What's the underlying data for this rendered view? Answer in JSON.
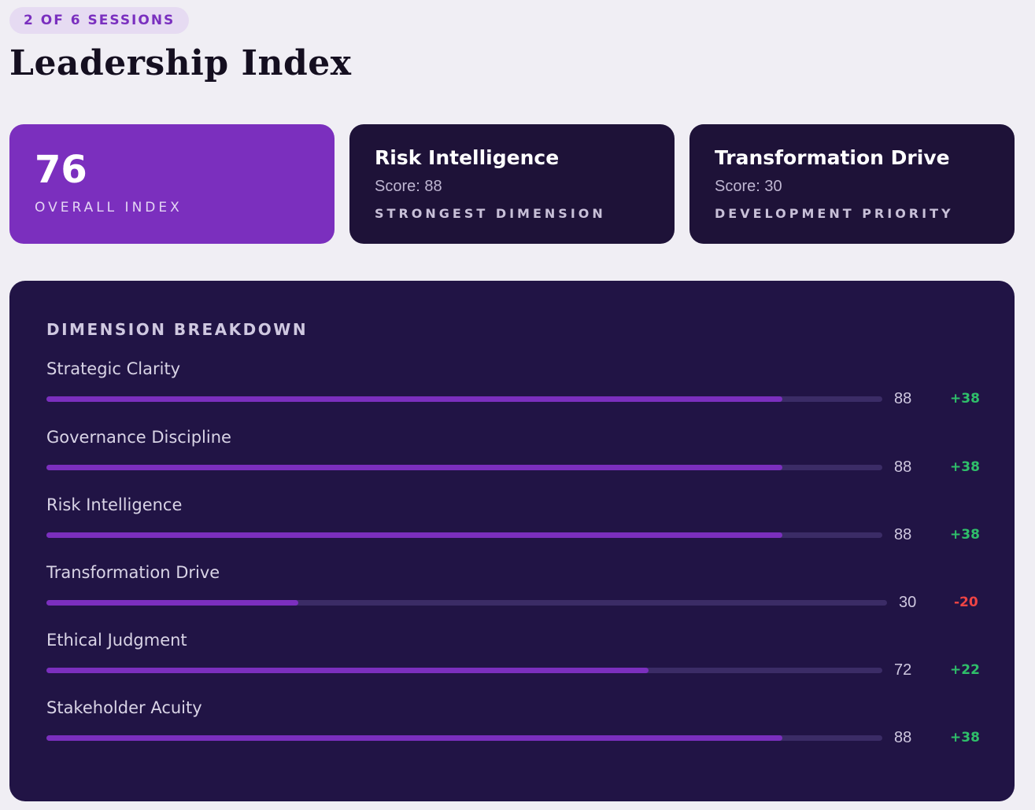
{
  "header": {
    "session_badge": "2 OF 6 SESSIONS",
    "title": "Leadership Index"
  },
  "summary": {
    "overall": {
      "value": "76",
      "label": "OVERALL INDEX"
    },
    "strongest": {
      "title": "Risk Intelligence",
      "score": "Score: 88",
      "caption": "STRONGEST DIMENSION"
    },
    "priority": {
      "title": "Transformation Drive",
      "score": "Score: 30",
      "caption": "DEVELOPMENT PRIORITY"
    }
  },
  "breakdown": {
    "title": "DIMENSION BREAKDOWN",
    "scale_max": 100,
    "dimensions": [
      {
        "label": "Strategic Clarity",
        "score": 88,
        "score_text": "88",
        "delta": "+38",
        "trend": "up"
      },
      {
        "label": "Governance Discipline",
        "score": 88,
        "score_text": "88",
        "delta": "+38",
        "trend": "up"
      },
      {
        "label": "Risk Intelligence",
        "score": 88,
        "score_text": "88",
        "delta": "+38",
        "trend": "up"
      },
      {
        "label": "Transformation Drive",
        "score": 30,
        "score_text": "30",
        "delta": "-20",
        "trend": "down"
      },
      {
        "label": "Ethical Judgment",
        "score": 72,
        "score_text": "72",
        "delta": "+22",
        "trend": "up"
      },
      {
        "label": "Stakeholder Acuity",
        "score": 88,
        "score_text": "88",
        "delta": "+38",
        "trend": "up"
      }
    ]
  },
  "colors": {
    "accent": "#7b2fbe",
    "card_dark": "#1e1238",
    "panel": "#211445",
    "track": "#3b2c66",
    "positive": "#2fbf6a",
    "negative": "#ef4444"
  }
}
